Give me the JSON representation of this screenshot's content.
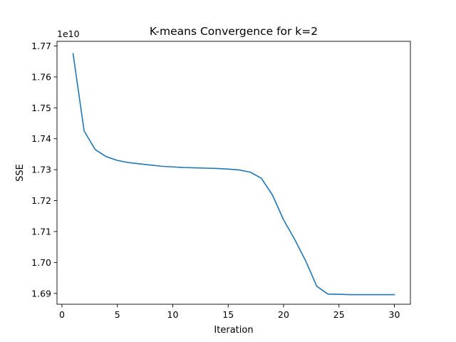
{
  "chart_data": {
    "type": "line",
    "title": "K-means Convergence for k=2",
    "xlabel": "Iteration",
    "ylabel": "SSE",
    "y_offset_text": "1e10",
    "xlim": [
      -0.45,
      31.45
    ],
    "ylim": [
      1.6865,
      1.7715
    ],
    "x_ticks": [
      0,
      5,
      10,
      15,
      20,
      25,
      30
    ],
    "y_ticks": [
      1.69,
      1.7,
      1.71,
      1.72,
      1.73,
      1.74,
      1.75,
      1.76,
      1.77
    ],
    "y_tick_labels": [
      "1.69",
      "1.70",
      "1.71",
      "1.72",
      "1.73",
      "1.74",
      "1.75",
      "1.76",
      "1.77"
    ],
    "grid": false,
    "color": "#1f77b4",
    "series": [
      {
        "x": [
          1,
          2,
          3,
          4,
          5,
          6,
          7,
          8,
          9,
          10,
          11,
          12,
          13,
          14,
          15,
          16,
          17,
          18,
          19,
          20,
          21,
          22,
          23,
          24,
          25,
          26,
          27,
          28,
          29,
          30
        ],
        "values": [
          1.7675,
          1.7425,
          1.7365,
          1.7342,
          1.733,
          1.7323,
          1.7319,
          1.7315,
          1.7311,
          1.7309,
          1.7307,
          1.7306,
          1.7305,
          1.7304,
          1.7302,
          1.7299,
          1.7292,
          1.7272,
          1.7218,
          1.7138,
          1.7075,
          1.7005,
          1.6923,
          1.6898,
          1.6897,
          1.6896,
          1.6896,
          1.6896,
          1.6896,
          1.6896
        ]
      }
    ]
  }
}
